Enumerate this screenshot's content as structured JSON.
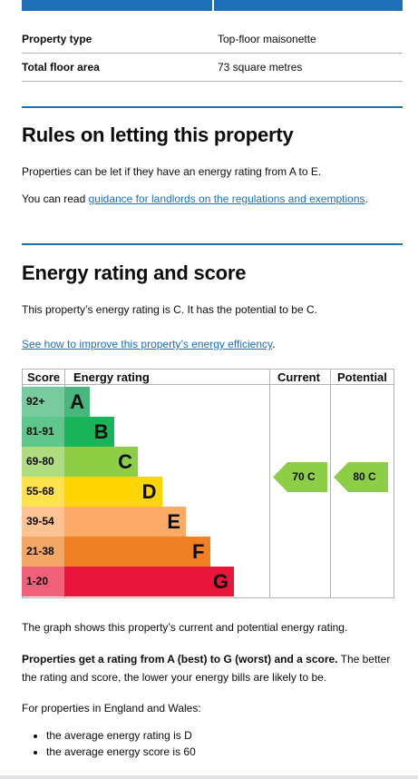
{
  "summary": {
    "rows": [
      {
        "key": "Property type",
        "value": "Top-floor maisonette"
      },
      {
        "key": "Total floor area",
        "value": "73 square metres"
      }
    ]
  },
  "rules": {
    "heading": "Rules on letting this property",
    "para1": "Properties can be let if they have an energy rating from A to E.",
    "para2_prefix": "You can read ",
    "para2_link": "guidance for landlords on the regulations and exemptions",
    "para2_suffix": "."
  },
  "energy": {
    "heading": "Energy rating and score",
    "para1": "This property’s energy rating is C. It has the potential to be C.",
    "link": "See how to improve this property’s energy efficiency",
    "link_suffix": "."
  },
  "chart_data": {
    "type": "table",
    "headers": {
      "score": "Score",
      "rating": "Energy rating",
      "current": "Current",
      "potential": "Potential"
    },
    "bands": [
      {
        "score": "92+",
        "letter": "A",
        "color": "#48b67d",
        "score_bg": "#78ca9f"
      },
      {
        "score": "81-91",
        "letter": "B",
        "color": "#19b459",
        "score_bg": "#5fc78b"
      },
      {
        "score": "69-80",
        "letter": "C",
        "color": "#8dce46",
        "score_bg": "#afdc7e"
      },
      {
        "score": "55-68",
        "letter": "D",
        "color": "#ffd500",
        "score_bg": "#ffe24d"
      },
      {
        "score": "39-54",
        "letter": "E",
        "color": "#fcaa65",
        "score_bg": "#fdc393"
      },
      {
        "score": "21-38",
        "letter": "F",
        "color": "#ef8023",
        "score_bg": "#f4a665"
      },
      {
        "score": "1-20",
        "letter": "G",
        "color": "#e9153b",
        "score_bg": "#f06078"
      }
    ],
    "current": {
      "score": 70,
      "band": "C",
      "label": "70 C",
      "color": "#8dce46"
    },
    "potential": {
      "score": 80,
      "band": "C",
      "label": "80 C",
      "color": "#8dce46"
    }
  },
  "after_chart": {
    "para1": "The graph shows this property’s current and potential energy rating.",
    "para2_bold": "Properties get a rating from A (best) to G (worst) and a score.",
    "para2_rest": " The better the rating and score, the lower your energy bills are likely to be.",
    "para3": "For properties in England and Wales:",
    "bullets": [
      "the average energy rating is D",
      "the average energy score is 60"
    ]
  }
}
